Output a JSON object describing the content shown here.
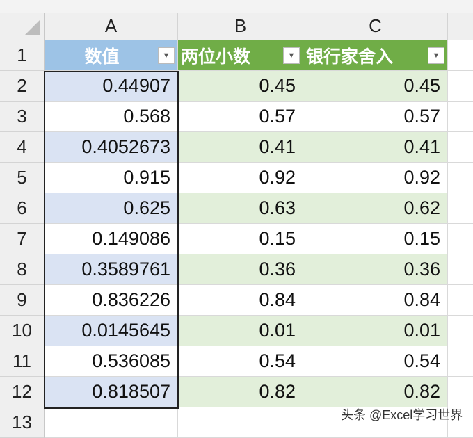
{
  "columns": [
    "A",
    "B",
    "C"
  ],
  "headers": [
    "数值",
    "两位小数",
    "银行家舍入"
  ],
  "rows": [
    [
      "0.44907",
      "0.45",
      "0.45"
    ],
    [
      "0.568",
      "0.57",
      "0.57"
    ],
    [
      "0.4052673",
      "0.41",
      "0.41"
    ],
    [
      "0.915",
      "0.92",
      "0.92"
    ],
    [
      "0.625",
      "0.63",
      "0.62"
    ],
    [
      "0.149086",
      "0.15",
      "0.15"
    ],
    [
      "0.3589761",
      "0.36",
      "0.36"
    ],
    [
      "0.836226",
      "0.84",
      "0.84"
    ],
    [
      "0.0145645",
      "0.01",
      "0.01"
    ],
    [
      "0.536085",
      "0.54",
      "0.54"
    ],
    [
      "0.818507",
      "0.82",
      "0.82"
    ]
  ],
  "row_numbers": [
    "1",
    "2",
    "3",
    "4",
    "5",
    "6",
    "7",
    "8",
    "9",
    "10",
    "11",
    "12",
    "13"
  ],
  "watermark": "头条 @Excel学习世界",
  "colors": {
    "header_a": "#9dc3e6",
    "band_a": "#dae3f3",
    "header_bc": "#70ad47",
    "band_bc": "#e2efda"
  },
  "filter_icon": "dropdown-arrow-icon"
}
